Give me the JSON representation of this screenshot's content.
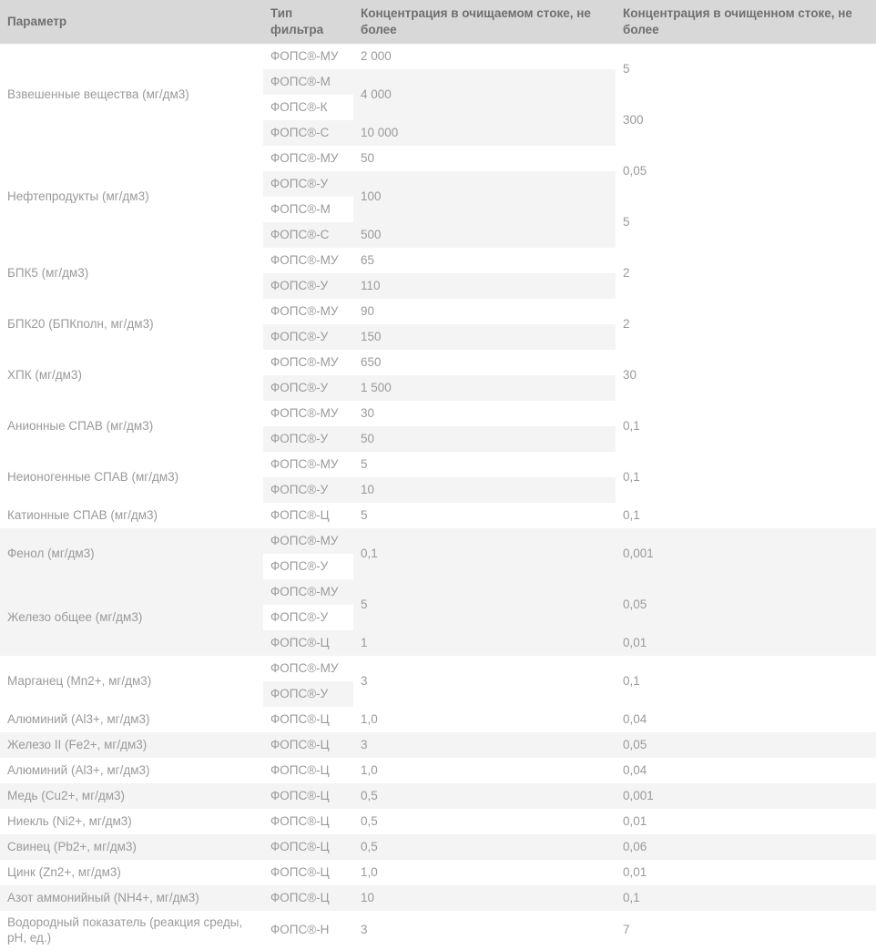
{
  "theme": {
    "header_bg": "#d8d8d8",
    "header_text": "#6f6f6f",
    "stripe_bg": "#f4f4f4",
    "row_bg": "#ffffff",
    "body_text": "#9a9a9a"
  },
  "table": {
    "columns": [
      {
        "label": "Параметр"
      },
      {
        "label": "Тип фильтра"
      },
      {
        "label": "Концентрация в очищаемом стоке, не более"
      },
      {
        "label": "Концентрация в очищенном стоке, не более"
      }
    ],
    "rows": [
      [
        {
          "t": "Взвешенные вещества (мг/дм3)",
          "c": 0,
          "rs": 4
        },
        {
          "t": "ФОПС®-МУ",
          "c": 1
        },
        {
          "t": "2 000",
          "c": 2
        },
        {
          "t": "5",
          "c": 3,
          "rs": 2
        }
      ],
      [
        {
          "t": "ФОПС®-М",
          "c": 1
        },
        {
          "t": "4 000",
          "c": 2,
          "rs": 2
        }
      ],
      [
        {
          "t": "ФОПС®-К",
          "c": 1
        },
        {
          "t": "300",
          "c": 3,
          "rs": 2
        }
      ],
      [
        {
          "t": "ФОПС®-С",
          "c": 1
        },
        {
          "t": "10 000",
          "c": 2
        }
      ],
      [
        {
          "t": "Нефтепродукты (мг/дм3)",
          "c": 0,
          "rs": 4
        },
        {
          "t": "ФОПС®-МУ",
          "c": 1
        },
        {
          "t": "50",
          "c": 2
        },
        {
          "t": "0,05",
          "c": 3,
          "rs": 2
        }
      ],
      [
        {
          "t": "ФОПС®-У",
          "c": 1
        },
        {
          "t": "100",
          "c": 2,
          "rs": 2
        }
      ],
      [
        {
          "t": "ФОПС®-М",
          "c": 1
        },
        {
          "t": "5",
          "c": 3,
          "rs": 2
        }
      ],
      [
        {
          "t": "ФОПС®-С",
          "c": 1
        },
        {
          "t": "500",
          "c": 2
        }
      ],
      [
        {
          "t": "БПК5 (мг/дм3)",
          "c": 0,
          "rs": 2
        },
        {
          "t": "ФОПС®-МУ",
          "c": 1
        },
        {
          "t": "65",
          "c": 2
        },
        {
          "t": "2",
          "c": 3,
          "rs": 2
        }
      ],
      [
        {
          "t": "ФОПС®-У",
          "c": 1
        },
        {
          "t": "110",
          "c": 2
        }
      ],
      [
        {
          "t": "БПК20 (БПКполн, мг/дм3)",
          "c": 0,
          "rs": 2
        },
        {
          "t": "ФОПС®-МУ",
          "c": 1
        },
        {
          "t": "90",
          "c": 2
        },
        {
          "t": "2",
          "c": 3,
          "rs": 2
        }
      ],
      [
        {
          "t": "ФОПС®-У",
          "c": 1
        },
        {
          "t": "150",
          "c": 2
        }
      ],
      [
        {
          "t": "ХПК (мг/дм3)",
          "c": 0,
          "rs": 2
        },
        {
          "t": "ФОПС®-МУ",
          "c": 1
        },
        {
          "t": "650",
          "c": 2
        },
        {
          "t": "30",
          "c": 3,
          "rs": 2
        }
      ],
      [
        {
          "t": "ФОПС®-У",
          "c": 1
        },
        {
          "t": "1 500",
          "c": 2
        }
      ],
      [
        {
          "t": "Анионные СПАВ (мг/дм3)",
          "c": 0,
          "rs": 2
        },
        {
          "t": "ФОПС®-МУ",
          "c": 1
        },
        {
          "t": "30",
          "c": 2
        },
        {
          "t": "0,1",
          "c": 3,
          "rs": 2
        }
      ],
      [
        {
          "t": "ФОПС®-У",
          "c": 1
        },
        {
          "t": "50",
          "c": 2
        }
      ],
      [
        {
          "t": "Неионогенные СПАВ (мг/дм3)",
          "c": 0,
          "rs": 2
        },
        {
          "t": "ФОПС®-МУ",
          "c": 1
        },
        {
          "t": "5",
          "c": 2
        },
        {
          "t": "0,1",
          "c": 3,
          "rs": 2
        }
      ],
      [
        {
          "t": "ФОПС®-У",
          "c": 1
        },
        {
          "t": "10",
          "c": 2
        }
      ],
      [
        {
          "t": "Катионные СПАВ (мг/дм3)",
          "c": 0
        },
        {
          "t": "ФОПС®-Ц",
          "c": 1
        },
        {
          "t": "5",
          "c": 2
        },
        {
          "t": "0,1",
          "c": 3
        }
      ],
      [
        {
          "t": "Фенол (мг/дм3)",
          "c": 0,
          "rs": 2
        },
        {
          "t": "ФОПС®-МУ",
          "c": 1
        },
        {
          "t": "0,1",
          "c": 2,
          "rs": 2
        },
        {
          "t": "0,001",
          "c": 3,
          "rs": 2
        }
      ],
      [
        {
          "t": "ФОПС®-У",
          "c": 1
        }
      ],
      [
        {
          "t": "Железо общее (мг/дм3)",
          "c": 0,
          "rs": 3
        },
        {
          "t": "ФОПС®-МУ",
          "c": 1
        },
        {
          "t": "5",
          "c": 2,
          "rs": 2
        },
        {
          "t": "0,05",
          "c": 3,
          "rs": 2
        }
      ],
      [
        {
          "t": "ФОПС®-У",
          "c": 1
        }
      ],
      [
        {
          "t": "ФОПС®-Ц",
          "c": 1
        },
        {
          "t": "1",
          "c": 2
        },
        {
          "t": "0,01",
          "c": 3
        }
      ],
      [
        {
          "t": "Марганец (Mn2+, мг/дм3)",
          "c": 0,
          "rs": 2
        },
        {
          "t": "ФОПС®-МУ",
          "c": 1
        },
        {
          "t": "3",
          "c": 2,
          "rs": 2
        },
        {
          "t": "0,1",
          "c": 3,
          "rs": 2
        }
      ],
      [
        {
          "t": "ФОПС®-У",
          "c": 1
        }
      ],
      [
        {
          "t": "Алюминий (Al3+, мг/дм3)",
          "c": 0
        },
        {
          "t": "ФОПС®-Ц",
          "c": 1
        },
        {
          "t": "1,0",
          "c": 2
        },
        {
          "t": "0,04",
          "c": 3
        }
      ],
      [
        {
          "t": "Железо II (Fe2+, мг/дм3)",
          "c": 0
        },
        {
          "t": "ФОПС®-Ц",
          "c": 1
        },
        {
          "t": "3",
          "c": 2
        },
        {
          "t": "0,05",
          "c": 3
        }
      ],
      [
        {
          "t": "Алюминий (Al3+, мг/дм3)",
          "c": 0
        },
        {
          "t": "ФОПС®-Ц",
          "c": 1
        },
        {
          "t": "1,0",
          "c": 2
        },
        {
          "t": "0,04",
          "c": 3
        }
      ],
      [
        {
          "t": "Медь (Cu2+, мг/дм3)",
          "c": 0
        },
        {
          "t": "ФОПС®-Ц",
          "c": 1
        },
        {
          "t": "0,5",
          "c": 2
        },
        {
          "t": "0,001",
          "c": 3
        }
      ],
      [
        {
          "t": "Ниекль (Ni2+, мг/дм3)",
          "c": 0
        },
        {
          "t": "ФОПС®-Ц",
          "c": 1
        },
        {
          "t": "0,5",
          "c": 2
        },
        {
          "t": "0,01",
          "c": 3
        }
      ],
      [
        {
          "t": "Свинец (Pb2+, мг/дм3)",
          "c": 0
        },
        {
          "t": "ФОПС®-Ц",
          "c": 1
        },
        {
          "t": "0,5",
          "c": 2
        },
        {
          "t": "0,06",
          "c": 3
        }
      ],
      [
        {
          "t": "Цинк (Zn2+, мг/дм3)",
          "c": 0
        },
        {
          "t": "ФОПС®-Ц",
          "c": 1
        },
        {
          "t": "1,0",
          "c": 2
        },
        {
          "t": "0,01",
          "c": 3
        }
      ],
      [
        {
          "t": "Азот аммонийный (NH4+, мг/дм3)",
          "c": 0
        },
        {
          "t": "ФОПС®-Ц",
          "c": 1
        },
        {
          "t": "10",
          "c": 2
        },
        {
          "t": "0,1",
          "c": 3
        }
      ],
      [
        {
          "t": "Водородный показатель (реакция среды, рН, ед.)",
          "c": 0
        },
        {
          "t": "ФОПС®-Н",
          "c": 1
        },
        {
          "t": "3",
          "c": 2
        },
        {
          "t": "7",
          "c": 3
        }
      ]
    ]
  }
}
